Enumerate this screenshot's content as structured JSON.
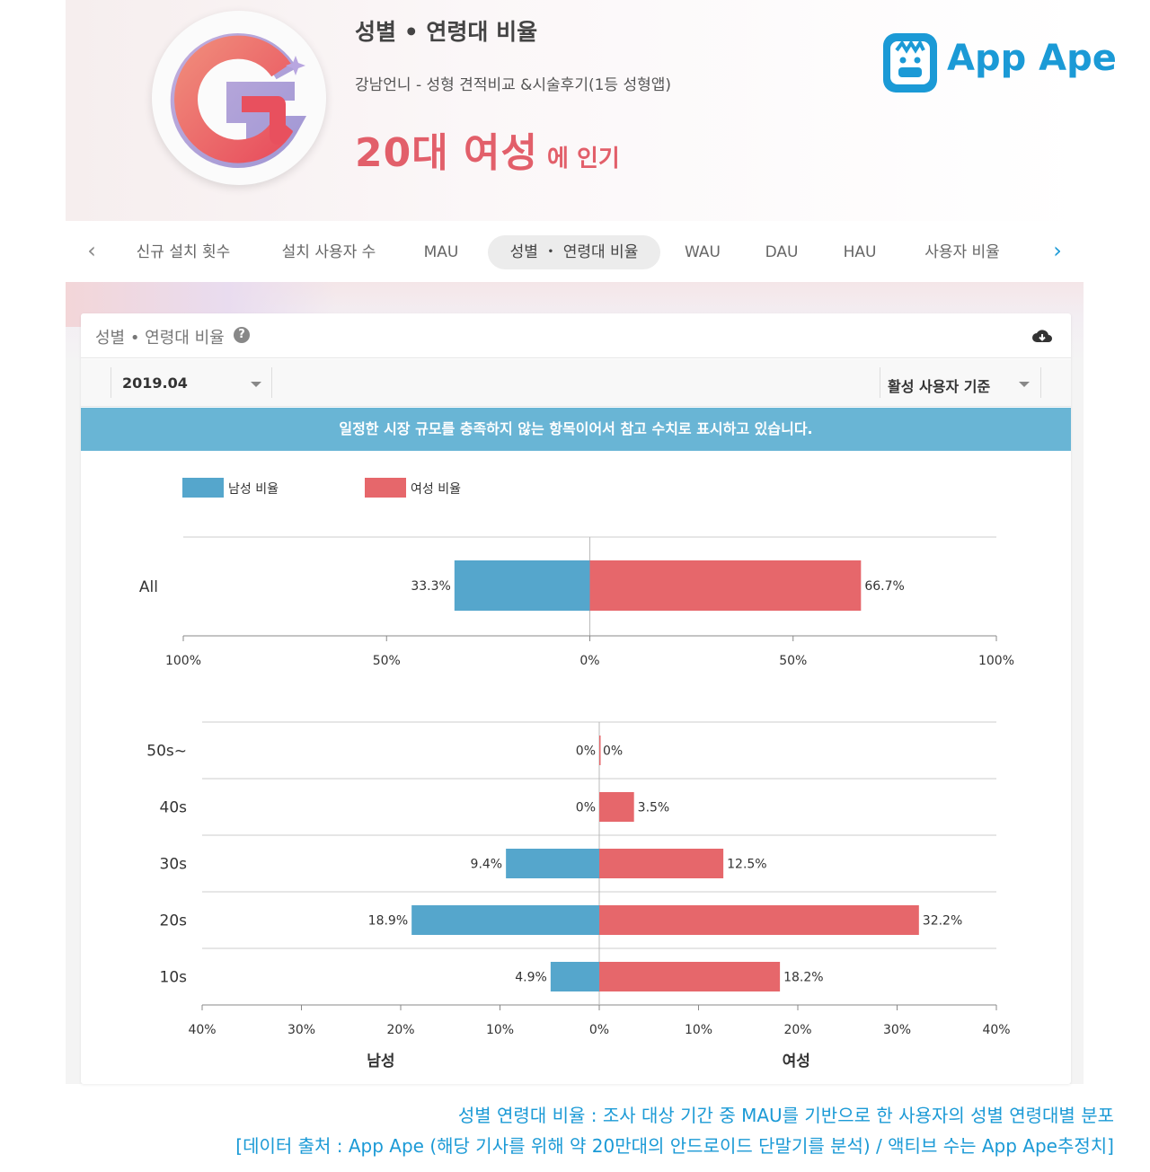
{
  "header": {
    "title": "성별 • 연령대 비율",
    "app_name": "강남언니 - 성형 견적비교 &시술후기(1등 성형앱)",
    "popular_segment": "20대 여성",
    "popular_suffix": "에 인기",
    "brand": "App Ape",
    "icon_letter": "G"
  },
  "tabs": [
    {
      "label": "신규 설치 횟수",
      "active": false
    },
    {
      "label": "설치 사용자 수",
      "active": false
    },
    {
      "label": "MAU",
      "active": false
    },
    {
      "label": "성별 ・ 연령대 비율",
      "active": true
    },
    {
      "label": "WAU",
      "active": false
    },
    {
      "label": "DAU",
      "active": false
    },
    {
      "label": "HAU",
      "active": false
    },
    {
      "label": "사용자 비율",
      "active": false
    }
  ],
  "card": {
    "title": "성별 • 연령대 비율",
    "date_select": "2019.04",
    "basis_select": "활성 사용자 기준",
    "notice": "일정한 시장 규모를 충족하지 않는 항목이어서 참고 수치로 표시하고 있습니다."
  },
  "colors": {
    "male": "#55a6cc",
    "female": "#e6676b",
    "brand": "#1b9ad6",
    "notice": "#69b5d5"
  },
  "chart_data": [
    {
      "type": "bar",
      "orientation": "horizontal-diverging",
      "legend": [
        "남성 비율",
        "여성 비율"
      ],
      "categories": [
        "All"
      ],
      "series": [
        {
          "name": "남성 비율",
          "values": [
            33.3
          ]
        },
        {
          "name": "여성 비율",
          "values": [
            66.7
          ]
        }
      ],
      "xlim": [
        -100,
        100
      ],
      "tick_labels": [
        "100%",
        "50%",
        "0%",
        "50%",
        "100%"
      ]
    },
    {
      "type": "bar",
      "orientation": "horizontal-diverging",
      "categories": [
        "50s~",
        "40s",
        "30s",
        "20s",
        "10s"
      ],
      "series": [
        {
          "name": "남성",
          "values": [
            0,
            0,
            9.4,
            18.9,
            4.9
          ]
        },
        {
          "name": "여성",
          "values": [
            0,
            3.5,
            12.5,
            32.2,
            18.2
          ]
        }
      ],
      "xlim": [
        -40,
        40
      ],
      "tick_labels": [
        "40%",
        "30%",
        "20%",
        "10%",
        "0%",
        "10%",
        "20%",
        "30%",
        "40%"
      ],
      "xlabel_left": "남성",
      "xlabel_right": "여성"
    }
  ],
  "captions": [
    "성별 연령대 비율 : 조사 대상 기간 중 MAU를 기반으로 한 사용자의 성별 연령대별 분포",
    "[데이터 출처 : App Ape (해당 기사를 위해 약 20만대의 안드로이드 단말기를 분석) / 액티브 수는 App Ape추정치]"
  ]
}
